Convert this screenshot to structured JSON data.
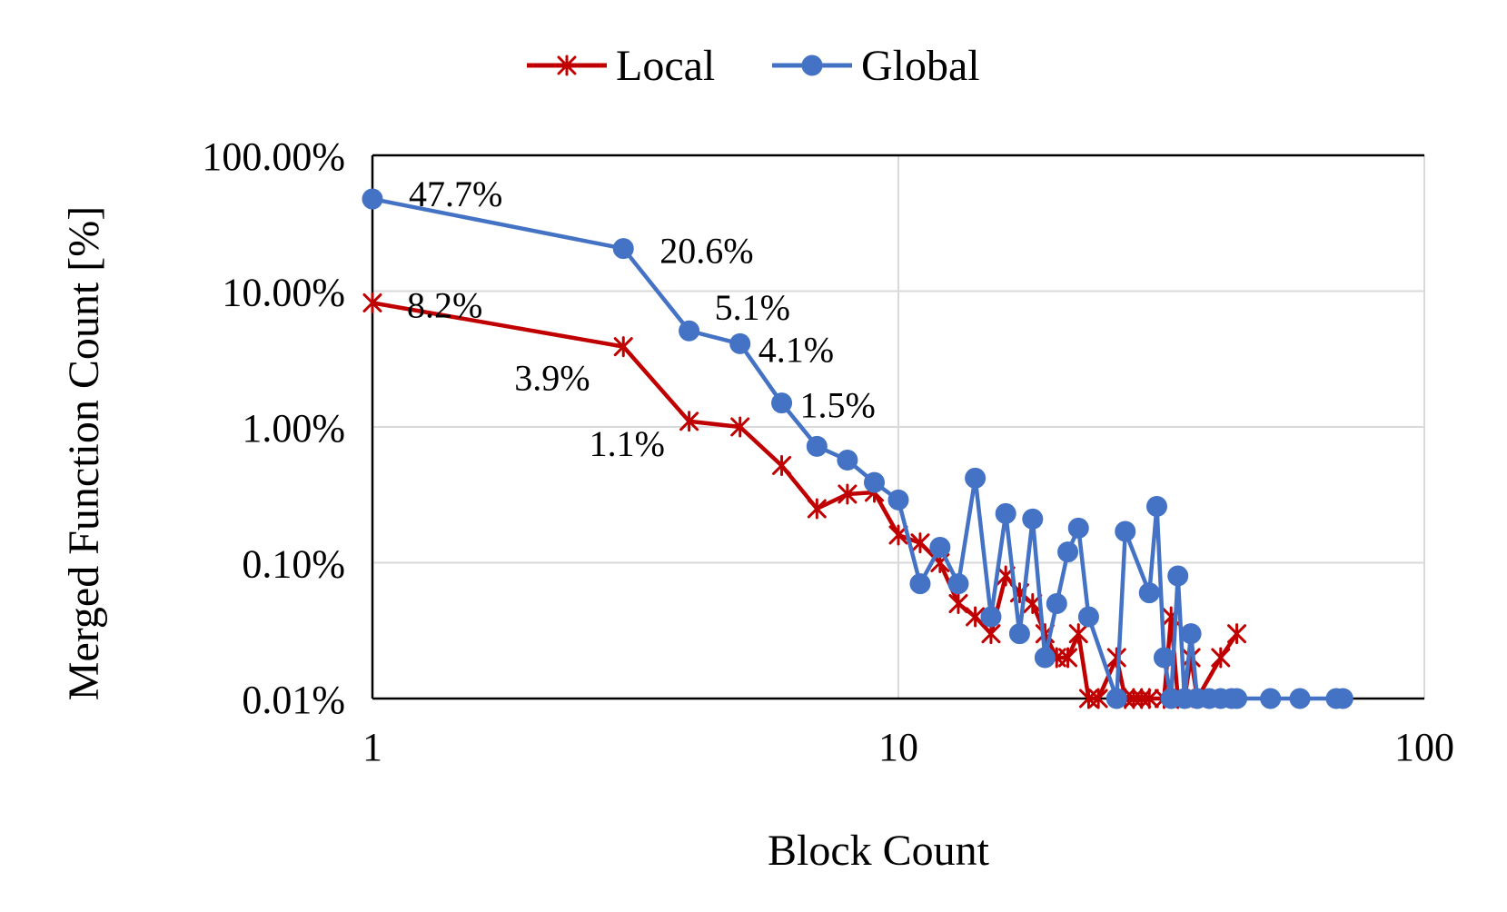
{
  "chart_data": {
    "type": "line",
    "xlabel": "Block Count",
    "ylabel": "Merged Function Count [%]",
    "x_scale": "log",
    "y_scale": "log",
    "xlim": [
      1,
      100
    ],
    "ylim": [
      0.01,
      100
    ],
    "x_ticks": [
      1,
      10,
      100
    ],
    "x_tick_labels": [
      "1",
      "10",
      "100"
    ],
    "y_ticks": [
      0.01,
      0.1,
      1,
      10,
      100
    ],
    "y_tick_labels": [
      "0.01%",
      "0.10%",
      "1.00%",
      "10.00%",
      "100.00%"
    ],
    "grid": true,
    "legend_position": "top-center",
    "series": [
      {
        "name": "Local",
        "color": "#C00000",
        "marker": "asterisk",
        "x": [
          1,
          3,
          4,
          5,
          6,
          7,
          8,
          9,
          10,
          11,
          12,
          13,
          14,
          15,
          16,
          17,
          18,
          19,
          20,
          21,
          22,
          23,
          24,
          26,
          27,
          28,
          29,
          30,
          32,
          33,
          34,
          35,
          36,
          37,
          41,
          44
        ],
        "y": [
          8.2,
          3.9,
          1.1,
          1.0,
          0.52,
          0.25,
          0.32,
          0.33,
          0.16,
          0.14,
          0.1,
          0.05,
          0.04,
          0.03,
          0.08,
          0.06,
          0.05,
          0.03,
          0.02,
          0.02,
          0.03,
          0.01,
          0.01,
          0.02,
          0.01,
          0.01,
          0.01,
          0.01,
          0.01,
          0.04,
          0.01,
          0.01,
          0.02,
          0.01,
          0.02,
          0.03
        ]
      },
      {
        "name": "Global",
        "color": "#4472C4",
        "marker": "circle",
        "x": [
          1,
          3,
          4,
          5,
          6,
          7,
          8,
          9,
          10,
          11,
          12,
          13,
          14,
          15,
          16,
          17,
          18,
          19,
          20,
          21,
          22,
          23,
          26,
          27,
          30,
          31,
          32,
          33,
          34,
          35,
          36,
          37,
          39,
          41,
          43,
          44,
          51,
          58,
          68,
          70
        ],
        "y": [
          47.7,
          20.6,
          5.1,
          4.1,
          1.5,
          0.72,
          0.57,
          0.39,
          0.29,
          0.07,
          0.13,
          0.07,
          0.42,
          0.04,
          0.23,
          0.03,
          0.21,
          0.02,
          0.05,
          0.12,
          0.18,
          0.04,
          0.01,
          0.17,
          0.06,
          0.26,
          0.02,
          0.01,
          0.08,
          0.01,
          0.03,
          0.01,
          0.01,
          0.01,
          0.01,
          0.01,
          0.01,
          0.01,
          0.01,
          0.01
        ]
      }
    ],
    "annotations": [
      {
        "text": "47.7%",
        "x": 1,
        "y": 47.7
      },
      {
        "text": "20.6%",
        "x": 3,
        "y": 20.6
      },
      {
        "text": "5.1%",
        "x": 4,
        "y": 5.1
      },
      {
        "text": "4.1%",
        "x": 5,
        "y": 4.1
      },
      {
        "text": "1.5%",
        "x": 6,
        "y": 1.5
      },
      {
        "text": "8.2%",
        "x": 1,
        "y": 8.2
      },
      {
        "text": "3.9%",
        "x": 3,
        "y": 3.9
      },
      {
        "text": "1.1%",
        "x": 4,
        "y": 1.1
      }
    ]
  }
}
